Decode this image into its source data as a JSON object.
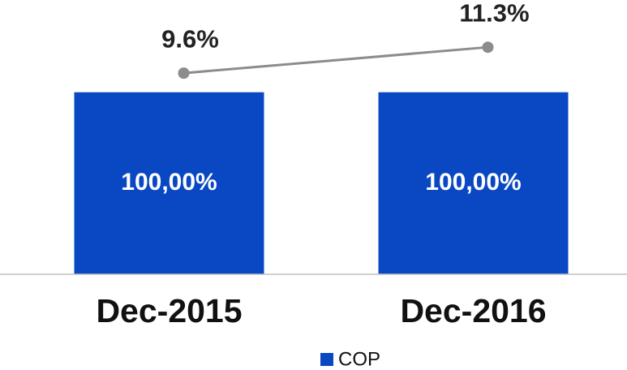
{
  "chart_data": {
    "type": "bar",
    "categories": [
      "Dec-2015",
      "Dec-2016"
    ],
    "series": [
      {
        "name": "COP",
        "type": "bar",
        "color": "#0a47c2",
        "values": [
          100,
          100
        ],
        "value_labels": [
          "100,00%",
          "100,00%"
        ]
      },
      {
        "type": "line",
        "axis": "y2",
        "color": "#8c8c8c",
        "values": [
          9.6,
          11.3
        ],
        "value_labels": [
          "9.6%",
          "11.3%"
        ]
      }
    ],
    "ylim": [
      0,
      144
    ],
    "y2lim": [
      -3.6,
      13.6
    ],
    "legend": "bottom"
  }
}
